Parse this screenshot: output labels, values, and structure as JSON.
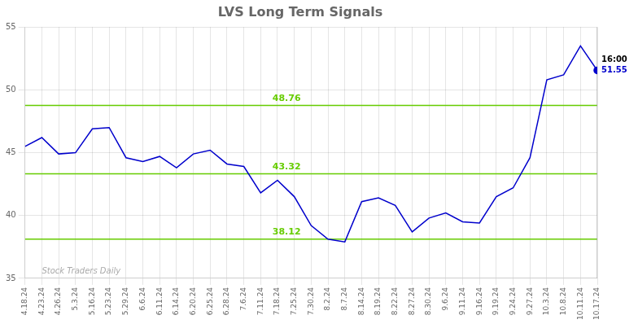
{
  "chart_data": {
    "type": "line",
    "title": "LVS Long Term Signals",
    "categories": [
      "4.18.24",
      "4.23.24",
      "4.26.24",
      "5.3.24",
      "5.16.24",
      "5.23.24",
      "5.29.24",
      "6.6.24",
      "6.11.24",
      "6.14.24",
      "6.20.24",
      "6.25.24",
      "6.28.24",
      "7.6.24",
      "7.11.24",
      "7.18.24",
      "7.25.24",
      "7.30.24",
      "8.2.24",
      "8.7.24",
      "8.14.24",
      "8.19.24",
      "8.22.24",
      "8.27.24",
      "8.30.24",
      "9.6.24",
      "9.11.24",
      "9.16.24",
      "9.19.24",
      "9.24.24",
      "9.27.24",
      "10.3.24",
      "10.8.24",
      "10.11.24",
      "10.17.24"
    ],
    "values": [
      45.5,
      46.2,
      44.9,
      45.0,
      46.9,
      47.0,
      44.6,
      44.3,
      44.7,
      43.8,
      44.9,
      45.2,
      44.1,
      43.9,
      41.8,
      42.8,
      41.5,
      39.2,
      38.12,
      37.9,
      41.1,
      41.4,
      40.8,
      38.7,
      39.8,
      40.2,
      39.5,
      39.4,
      41.5,
      42.2,
      44.6,
      50.8,
      51.2,
      53.5,
      51.55
    ],
    "color": "#0000cc",
    "ylim": [
      35,
      55
    ],
    "yticks": [
      35,
      40,
      45,
      50,
      55
    ],
    "grid": true,
    "reference_lines": [
      {
        "value": 48.76,
        "label": "48.76",
        "color": "#66cc00"
      },
      {
        "value": 43.32,
        "label": "43.32",
        "color": "#66cc00"
      },
      {
        "value": 38.12,
        "label": "38.12",
        "color": "#66cc00"
      }
    ],
    "watermark": "Stock Traders Daily",
    "annotations": [
      {
        "text": "16:00"
      },
      {
        "text": "51.55",
        "value": 51.55
      }
    ]
  }
}
